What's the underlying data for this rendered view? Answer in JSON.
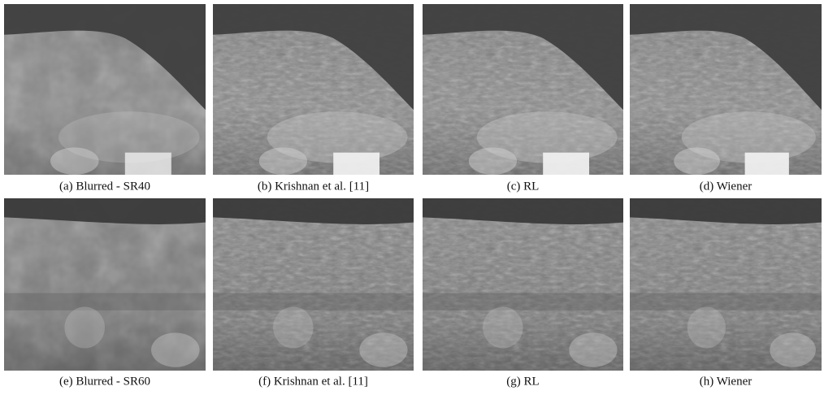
{
  "figure": {
    "panels": [
      {
        "caption": "(a) Blurred - SR40"
      },
      {
        "caption": "(b) Krishnan et al. [11]"
      },
      {
        "caption": "(c) RL"
      },
      {
        "caption": "(d) Wiener"
      },
      {
        "caption": "(e) Blurred - SR60"
      },
      {
        "caption": "(f) Krishnan et al. [11]"
      },
      {
        "caption": "(g) RL"
      },
      {
        "caption": "(h) Wiener"
      }
    ]
  }
}
